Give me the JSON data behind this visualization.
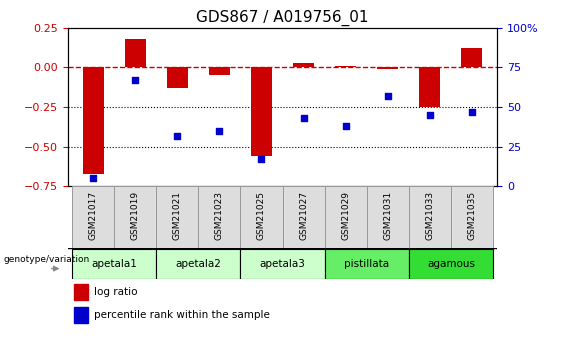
{
  "title": "GDS867 / A019756_01",
  "samples": [
    "GSM21017",
    "GSM21019",
    "GSM21021",
    "GSM21023",
    "GSM21025",
    "GSM21027",
    "GSM21029",
    "GSM21031",
    "GSM21033",
    "GSM21035"
  ],
  "log_ratio": [
    -0.67,
    0.18,
    -0.13,
    -0.05,
    -0.56,
    0.03,
    0.01,
    -0.01,
    -0.25,
    0.12
  ],
  "percentile_rank": [
    5,
    67,
    32,
    35,
    17,
    43,
    38,
    57,
    45,
    47
  ],
  "ylim_left": [
    -0.75,
    0.25
  ],
  "ylim_right": [
    0,
    100
  ],
  "yticks_left": [
    -0.75,
    -0.5,
    -0.25,
    0,
    0.25
  ],
  "yticks_right": [
    0,
    25,
    50,
    75,
    100
  ],
  "hlines": [
    -0.25,
    -0.5
  ],
  "bar_color": "#CC0000",
  "dot_color": "#0000CC",
  "dashed_color": "#CC0000",
  "groups": [
    {
      "label": "apetala1",
      "start": 0,
      "end": 2,
      "color": "#CCFFCC"
    },
    {
      "label": "apetala2",
      "start": 2,
      "end": 4,
      "color": "#CCFFCC"
    },
    {
      "label": "apetala3",
      "start": 4,
      "end": 6,
      "color": "#CCFFCC"
    },
    {
      "label": "pistillata",
      "start": 6,
      "end": 8,
      "color": "#66EE66"
    },
    {
      "label": "agamous",
      "start": 8,
      "end": 10,
      "color": "#33DD33"
    }
  ],
  "genotype_label": "genotype/variation",
  "legend_log_ratio": "log ratio",
  "legend_percentile": "percentile rank within the sample",
  "background_plot": "#FFFFFF",
  "ticklabel_color_left": "#CC0000",
  "ticklabel_color_right": "#0000CC",
  "bar_width": 0.5,
  "sample_box_color": "#DDDDDD",
  "sample_box_edge": "#999999"
}
